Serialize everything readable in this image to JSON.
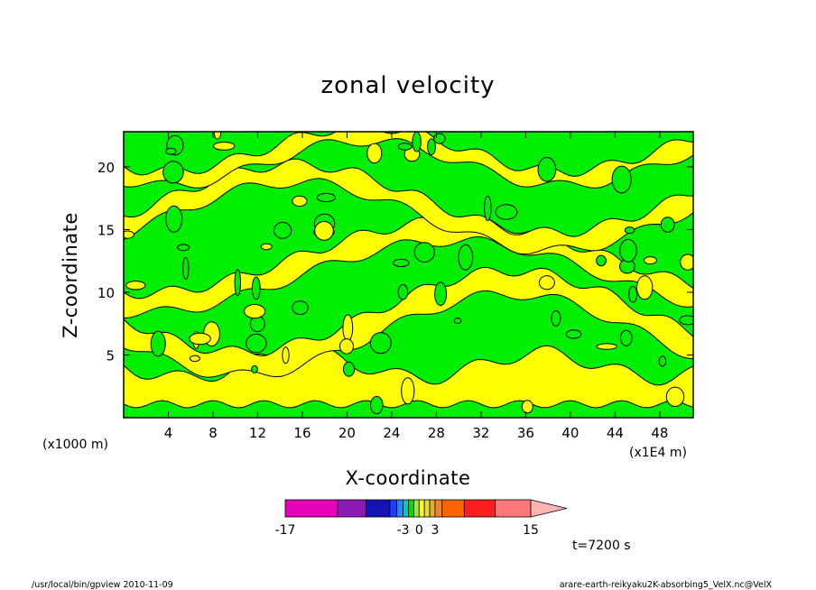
{
  "chart_data": {
    "type": "heatmap",
    "title": "zonal velocity",
    "xlabel": "X-coordinate",
    "ylabel": "Z-coordinate",
    "x_unit_left": "(x1000 m)",
    "x_unit_right": "(x1E4 m)",
    "xlim": [
      0,
      51
    ],
    "ylim": [
      0,
      22.8
    ],
    "x_ticks": [
      4,
      8,
      12,
      16,
      20,
      24,
      28,
      32,
      36,
      40,
      44,
      48
    ],
    "y_ticks": [
      5,
      10,
      15,
      20
    ],
    "time_label": "t=7200 s",
    "colorbar": {
      "labels": [
        "-17",
        "-3",
        "0",
        "3",
        "15"
      ],
      "levels": [
        -17,
        -13,
        -9,
        -7,
        -5,
        -3,
        -2,
        -1,
        0,
        1,
        2,
        3,
        5,
        7,
        9,
        11,
        15
      ],
      "colors": [
        "#e600b8",
        "#8c1ab4",
        "#1414b4",
        "#1e3cff",
        "#1e8cff",
        "#00c8c8",
        "#00dc00",
        "#a0e632",
        "#ffff00",
        "#e6dc32",
        "#e6af2d",
        "#f08228",
        "#ff6400",
        "#ff1e1e",
        "#ff7878",
        "#ffb4b4"
      ],
      "extend": "max"
    },
    "field_colors": {
      "negative": "#00ee00",
      "positive": "#ffff00",
      "contour": "#000000"
    },
    "field_description": "zonal velocity (m/s) alternating between slightly negative (green, -1 to 0) and slightly positive (yellow, 0 to 1) values in wavy diagonal bands across the domain"
  },
  "footer": {
    "left": "/usr/local/bin/gpview   2010-11-09",
    "right": "arare-earth-reikyaku2K-absorbing5_VelX.nc@VelX"
  }
}
